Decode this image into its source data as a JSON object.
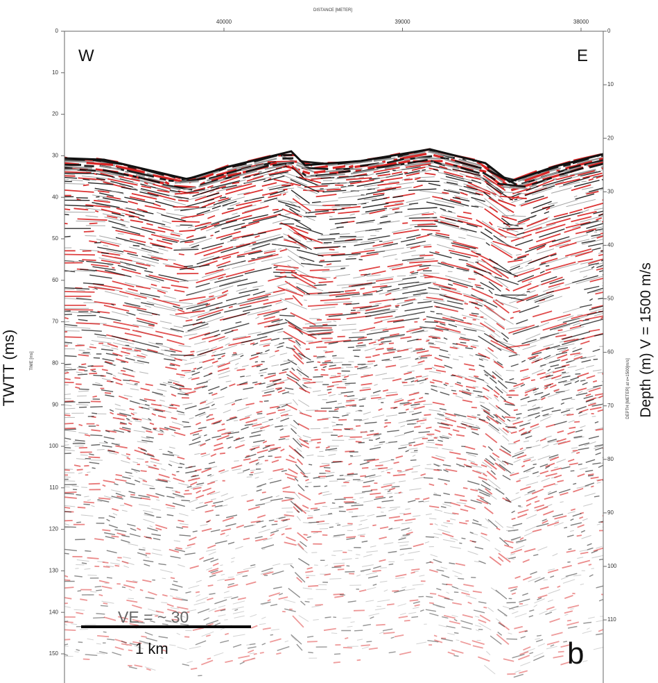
{
  "top_axis": {
    "title": "DISTANCE [METER]",
    "ticks": [
      40000,
      39000,
      38000
    ]
  },
  "left_axis": {
    "title": "TIME [ms]",
    "ticks": [
      0,
      10,
      20,
      30,
      40,
      50,
      60,
      70,
      80,
      90,
      100,
      110,
      120,
      130,
      140,
      150
    ]
  },
  "right_axis": {
    "title": "DEPTH [METER] at v=1500[m/s]",
    "ticks": [
      0,
      10,
      20,
      30,
      40,
      50,
      60,
      70,
      80,
      90,
      100,
      110
    ]
  },
  "labels": {
    "west": "W",
    "east": "E",
    "panel": "b",
    "ve": "VE = ~ 30",
    "scale": "1 km",
    "twtt": "TWTT (ms)",
    "depth": "Depth (m)   V = 1500 m/s"
  }
}
